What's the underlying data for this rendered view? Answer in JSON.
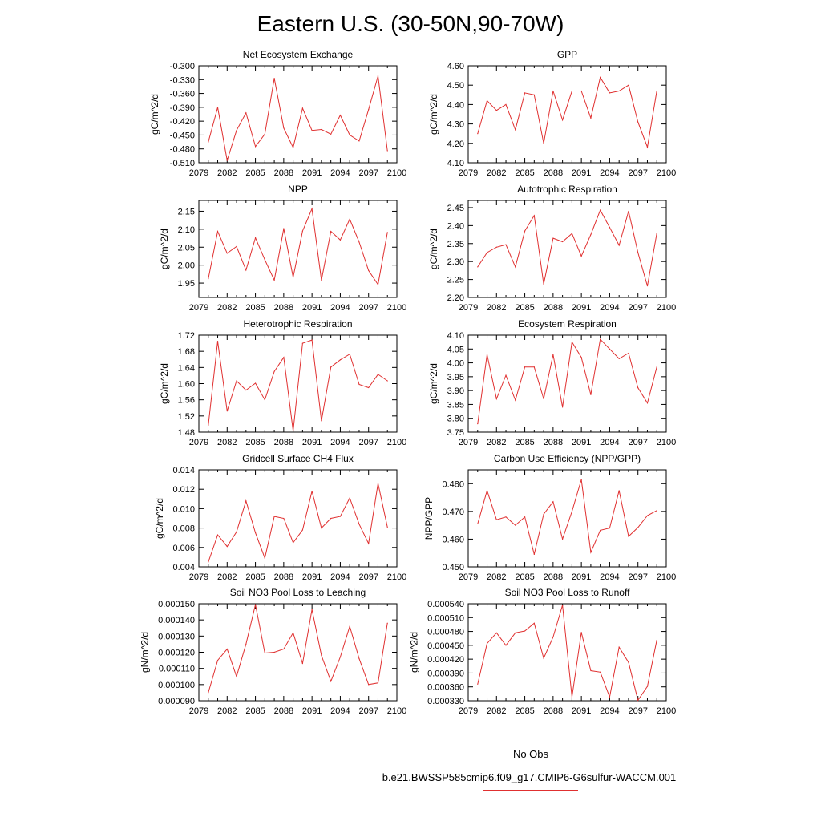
{
  "title": "Eastern U.S. (30-50N,90-70W)",
  "legend": {
    "obs_label": "No Obs",
    "case_label": "b.e21.BWSSP585cmip6.f09_g17.CMIP6-G6sulfur-WACCM.001",
    "obs_color": "#4a4ae0",
    "case_color": "#e03030"
  },
  "chart_data": [
    {
      "type": "line",
      "title": "Net Ecosystem Exchange",
      "ylabel": "gC/m^2/d",
      "xlim": [
        2079,
        2100
      ],
      "xticks": [
        "2079",
        "2082",
        "2085",
        "2088",
        "2091",
        "2094",
        "2097",
        "2100"
      ],
      "ylim": [
        -0.51,
        -0.3
      ],
      "yticks": [
        "-0.300",
        "-0.330",
        "-0.360",
        "-0.390",
        "-0.420",
        "-0.450",
        "-0.480",
        "-0.510"
      ],
      "x": [
        2080,
        2081,
        2082,
        2083,
        2084,
        2085,
        2086,
        2087,
        2088,
        2089,
        2090,
        2091,
        2092,
        2093,
        2094,
        2095,
        2096,
        2097,
        2098,
        2099
      ],
      "values": [
        -0.465,
        -0.39,
        -0.505,
        -0.44,
        -0.402,
        -0.475,
        -0.448,
        -0.327,
        -0.435,
        -0.477,
        -0.392,
        -0.44,
        -0.438,
        -0.448,
        -0.407,
        -0.45,
        -0.463,
        -0.395,
        -0.322,
        -0.484
      ]
    },
    {
      "type": "line",
      "title": "GPP",
      "ylabel": "gC/m^2/d",
      "xlim": [
        2079,
        2100
      ],
      "xticks": [
        "2079",
        "2082",
        "2085",
        "2088",
        "2091",
        "2094",
        "2097",
        "2100"
      ],
      "ylim": [
        4.1,
        4.6
      ],
      "yticks": [
        "4.10",
        "4.20",
        "4.30",
        "4.40",
        "4.50",
        "4.60"
      ],
      "x": [
        2080,
        2081,
        2082,
        2083,
        2084,
        2085,
        2086,
        2087,
        2088,
        2089,
        2090,
        2091,
        2092,
        2093,
        2094,
        2095,
        2096,
        2097,
        2098,
        2099
      ],
      "values": [
        4.25,
        4.42,
        4.37,
        4.4,
        4.27,
        4.46,
        4.45,
        4.2,
        4.47,
        4.32,
        4.47,
        4.47,
        4.33,
        4.54,
        4.46,
        4.47,
        4.5,
        4.31,
        4.18,
        4.47
      ]
    },
    {
      "type": "line",
      "title": "NPP",
      "ylabel": "gC/m^2/d",
      "xlim": [
        2079,
        2100
      ],
      "xticks": [
        "2079",
        "2082",
        "2085",
        "2088",
        "2091",
        "2094",
        "2097",
        "2100"
      ],
      "ylim": [
        1.91,
        2.18
      ],
      "yticks": [
        "1.95",
        "2.00",
        "2.05",
        "2.10",
        "2.15"
      ],
      "x": [
        2080,
        2081,
        2082,
        2083,
        2084,
        2085,
        2086,
        2087,
        2088,
        2089,
        2090,
        2091,
        2092,
        2093,
        2094,
        2095,
        2096,
        2097,
        2098,
        2099
      ],
      "values": [
        1.962,
        2.094,
        2.033,
        2.052,
        1.986,
        2.076,
        2.015,
        1.958,
        2.102,
        1.966,
        2.095,
        2.157,
        1.958,
        2.094,
        2.07,
        2.128,
        2.064,
        1.985,
        1.946,
        2.091
      ]
    },
    {
      "type": "line",
      "title": "Autotrophic Respiration",
      "ylabel": "gC/m^2/d",
      "xlim": [
        2079,
        2100
      ],
      "xticks": [
        "2079",
        "2082",
        "2085",
        "2088",
        "2091",
        "2094",
        "2097",
        "2100"
      ],
      "ylim": [
        2.2,
        2.47
      ],
      "yticks": [
        "2.20",
        "2.25",
        "2.30",
        "2.35",
        "2.40",
        "2.45"
      ],
      "x": [
        2080,
        2081,
        2082,
        2083,
        2084,
        2085,
        2086,
        2087,
        2088,
        2089,
        2090,
        2091,
        2092,
        2093,
        2094,
        2095,
        2096,
        2097,
        2098,
        2099
      ],
      "values": [
        2.285,
        2.325,
        2.34,
        2.347,
        2.285,
        2.385,
        2.428,
        2.237,
        2.365,
        2.355,
        2.378,
        2.315,
        2.375,
        2.443,
        2.395,
        2.345,
        2.44,
        2.325,
        2.232,
        2.378
      ]
    },
    {
      "type": "line",
      "title": "Heterotrophic Respiration",
      "ylabel": "gC/m^2/d",
      "xlim": [
        2079,
        2100
      ],
      "xticks": [
        "2079",
        "2082",
        "2085",
        "2088",
        "2091",
        "2094",
        "2097",
        "2100"
      ],
      "ylim": [
        1.48,
        1.72
      ],
      "yticks": [
        "1.48",
        "1.52",
        "1.56",
        "1.60",
        "1.64",
        "1.68",
        "1.72"
      ],
      "x": [
        2080,
        2081,
        2082,
        2083,
        2084,
        2085,
        2086,
        2087,
        2088,
        2089,
        2090,
        2091,
        2092,
        2093,
        2094,
        2095,
        2096,
        2097,
        2098,
        2099
      ],
      "values": [
        1.497,
        1.705,
        1.532,
        1.607,
        1.584,
        1.601,
        1.56,
        1.63,
        1.665,
        1.483,
        1.7,
        1.708,
        1.508,
        1.641,
        1.659,
        1.673,
        1.598,
        1.59,
        1.623,
        1.607
      ]
    },
    {
      "type": "line",
      "title": "Ecosystem Respiration",
      "ylabel": "gC/m^2/d",
      "xlim": [
        2079,
        2100
      ],
      "xticks": [
        "2079",
        "2082",
        "2085",
        "2088",
        "2091",
        "2094",
        "2097",
        "2100"
      ],
      "ylim": [
        3.75,
        4.1
      ],
      "yticks": [
        "3.75",
        "3.80",
        "3.85",
        "3.90",
        "3.95",
        "4.00",
        "4.05",
        "4.10"
      ],
      "x": [
        2080,
        2081,
        2082,
        2083,
        2084,
        2085,
        2086,
        2087,
        2088,
        2089,
        2090,
        2091,
        2092,
        2093,
        2094,
        2095,
        2096,
        2097,
        2098,
        2099
      ],
      "values": [
        3.78,
        4.03,
        3.87,
        3.955,
        3.865,
        3.985,
        3.985,
        3.87,
        4.03,
        3.84,
        4.075,
        4.02,
        3.885,
        4.085,
        4.05,
        4.015,
        4.035,
        3.91,
        3.855,
        3.985
      ]
    },
    {
      "type": "line",
      "title": "Gridcell Surface CH4 Flux",
      "ylabel": "gC/m^2/d",
      "xlim": [
        2079,
        2100
      ],
      "xticks": [
        "2079",
        "2082",
        "2085",
        "2088",
        "2091",
        "2094",
        "2097",
        "2100"
      ],
      "ylim": [
        0.004,
        0.014
      ],
      "yticks": [
        "0.004",
        "0.006",
        "0.008",
        "0.010",
        "0.012",
        "0.014"
      ],
      "x": [
        2080,
        2081,
        2082,
        2083,
        2084,
        2085,
        2086,
        2087,
        2088,
        2089,
        2090,
        2091,
        2092,
        2093,
        2094,
        2095,
        2096,
        2097,
        2098,
        2099
      ],
      "values": [
        0.0045,
        0.0073,
        0.0061,
        0.0076,
        0.0108,
        0.0075,
        0.0049,
        0.0092,
        0.009,
        0.0065,
        0.0078,
        0.0118,
        0.008,
        0.009,
        0.0092,
        0.0111,
        0.0084,
        0.0064,
        0.0126,
        0.0081
      ]
    },
    {
      "type": "line",
      "title": "Carbon Use Efficiency (NPP/GPP)",
      "ylabel": "NPP/GPP",
      "xlim": [
        2079,
        2100
      ],
      "xticks": [
        "2079",
        "2082",
        "2085",
        "2088",
        "2091",
        "2094",
        "2097",
        "2100"
      ],
      "ylim": [
        0.45,
        0.485
      ],
      "yticks": [
        "0.450",
        "0.460",
        "0.470",
        "0.480"
      ],
      "x": [
        2080,
        2081,
        2082,
        2083,
        2084,
        2085,
        2086,
        2087,
        2088,
        2089,
        2090,
        2091,
        2092,
        2093,
        2094,
        2095,
        2096,
        2097,
        2098,
        2099
      ],
      "values": [
        0.4655,
        0.4775,
        0.467,
        0.468,
        0.465,
        0.468,
        0.4545,
        0.469,
        0.4735,
        0.46,
        0.47,
        0.4815,
        0.4552,
        0.4632,
        0.464,
        0.4775,
        0.461,
        0.4642,
        0.4685,
        0.4703
      ]
    },
    {
      "type": "line",
      "title": "Soil NO3 Pool Loss to Leaching",
      "ylabel": "gN/m^2/d",
      "xlim": [
        2079,
        2100
      ],
      "xticks": [
        "2079",
        "2082",
        "2085",
        "2088",
        "2091",
        "2094",
        "2097",
        "2100"
      ],
      "ylim": [
        9e-05,
        0.00015
      ],
      "yticks": [
        "0.000090",
        "0.000100",
        "0.000110",
        "0.000120",
        "0.000130",
        "0.000140",
        "0.000150"
      ],
      "x": [
        2080,
        2081,
        2082,
        2083,
        2084,
        2085,
        2086,
        2087,
        2088,
        2089,
        2090,
        2091,
        2092,
        2093,
        2094,
        2095,
        2096,
        2097,
        2098,
        2099
      ],
      "values": [
        9.5e-05,
        0.000115,
        0.000122,
        0.000105,
        0.000125,
        0.0001495,
        0.0001195,
        0.00012,
        0.000122,
        0.000132,
        0.000113,
        0.0001465,
        0.000118,
        0.000102,
        0.000117,
        0.000136,
        0.000116,
        0.0001,
        0.000101,
        0.000138
      ]
    },
    {
      "type": "line",
      "title": "Soil NO3 Pool Loss to Runoff",
      "ylabel": "gN/m^2/d",
      "xlim": [
        2079,
        2100
      ],
      "xticks": [
        "2079",
        "2082",
        "2085",
        "2088",
        "2091",
        "2094",
        "2097",
        "2100"
      ],
      "ylim": [
        0.00033,
        0.00054
      ],
      "yticks": [
        "0.000330",
        "0.000360",
        "0.000390",
        "0.000420",
        "0.000450",
        "0.000480",
        "0.000510",
        "0.000540"
      ],
      "x": [
        2080,
        2081,
        2082,
        2083,
        2084,
        2085,
        2086,
        2087,
        2088,
        2089,
        2090,
        2091,
        2092,
        2093,
        2094,
        2095,
        2096,
        2097,
        2098,
        2099
      ],
      "values": [
        0.000366,
        0.000454,
        0.000477,
        0.00045,
        0.000477,
        0.000481,
        0.000498,
        0.000422,
        0.000468,
        0.000537,
        0.000338,
        0.000478,
        0.000395,
        0.000392,
        0.000338,
        0.000446,
        0.000413,
        0.000331,
        0.000361,
        0.000461
      ]
    }
  ]
}
